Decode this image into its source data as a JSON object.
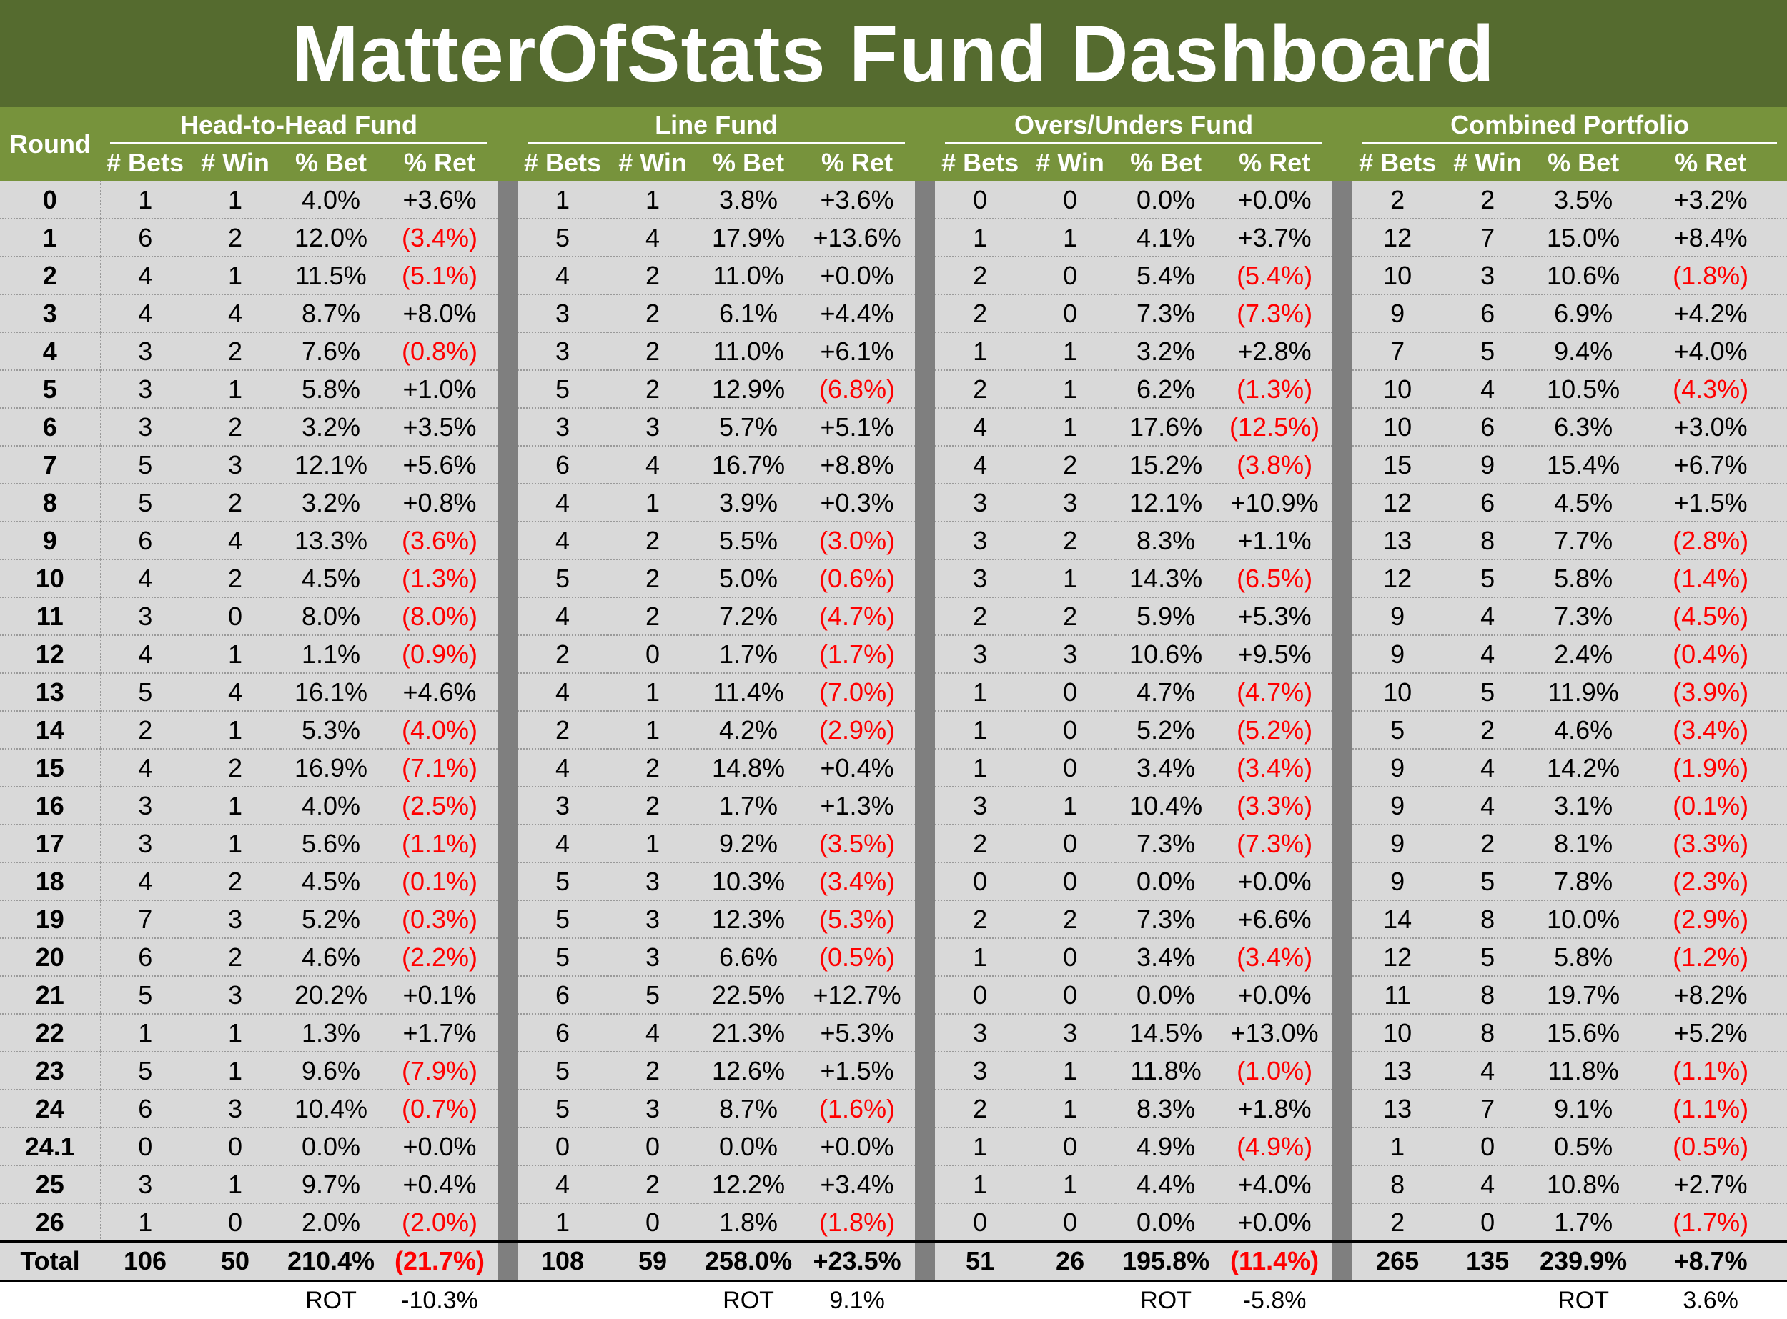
{
  "title": "MatterOfStats Fund Dashboard",
  "colors": {
    "header": "#556b2f",
    "subheader": "#77933c",
    "separator": "#7f7f7f",
    "cell": "#d9d9d9",
    "negative": "#ff0000"
  },
  "round_label": "Round",
  "funds": [
    {
      "name": "Head-to-Head Fund"
    },
    {
      "name": "Line Fund"
    },
    {
      "name": "Overs/Unders Fund"
    },
    {
      "name": "Combined Portfolio"
    }
  ],
  "columns": [
    "# Bets",
    "# Win",
    "% Bet",
    "% Ret"
  ],
  "rows": [
    {
      "round": "0",
      "cells": [
        [
          "1",
          "1",
          "4.0%",
          "+3.6%"
        ],
        [
          "1",
          "1",
          "3.8%",
          "+3.6%"
        ],
        [
          "0",
          "0",
          "0.0%",
          "+0.0%"
        ],
        [
          "2",
          "2",
          "3.5%",
          "+3.2%"
        ]
      ]
    },
    {
      "round": "1",
      "cells": [
        [
          "6",
          "2",
          "12.0%",
          "(3.4%)"
        ],
        [
          "5",
          "4",
          "17.9%",
          "+13.6%"
        ],
        [
          "1",
          "1",
          "4.1%",
          "+3.7%"
        ],
        [
          "12",
          "7",
          "15.0%",
          "+8.4%"
        ]
      ]
    },
    {
      "round": "2",
      "cells": [
        [
          "4",
          "1",
          "11.5%",
          "(5.1%)"
        ],
        [
          "4",
          "2",
          "11.0%",
          "+0.0%"
        ],
        [
          "2",
          "0",
          "5.4%",
          "(5.4%)"
        ],
        [
          "10",
          "3",
          "10.6%",
          "(1.8%)"
        ]
      ]
    },
    {
      "round": "3",
      "cells": [
        [
          "4",
          "4",
          "8.7%",
          "+8.0%"
        ],
        [
          "3",
          "2",
          "6.1%",
          "+4.4%"
        ],
        [
          "2",
          "0",
          "7.3%",
          "(7.3%)"
        ],
        [
          "9",
          "6",
          "6.9%",
          "+4.2%"
        ]
      ]
    },
    {
      "round": "4",
      "cells": [
        [
          "3",
          "2",
          "7.6%",
          "(0.8%)"
        ],
        [
          "3",
          "2",
          "11.0%",
          "+6.1%"
        ],
        [
          "1",
          "1",
          "3.2%",
          "+2.8%"
        ],
        [
          "7",
          "5",
          "9.4%",
          "+4.0%"
        ]
      ]
    },
    {
      "round": "5",
      "cells": [
        [
          "3",
          "1",
          "5.8%",
          "+1.0%"
        ],
        [
          "5",
          "2",
          "12.9%",
          "(6.8%)"
        ],
        [
          "2",
          "1",
          "6.2%",
          "(1.3%)"
        ],
        [
          "10",
          "4",
          "10.5%",
          "(4.3%)"
        ]
      ]
    },
    {
      "round": "6",
      "cells": [
        [
          "3",
          "2",
          "3.2%",
          "+3.5%"
        ],
        [
          "3",
          "3",
          "5.7%",
          "+5.1%"
        ],
        [
          "4",
          "1",
          "17.6%",
          "(12.5%)"
        ],
        [
          "10",
          "6",
          "6.3%",
          "+3.0%"
        ]
      ]
    },
    {
      "round": "7",
      "cells": [
        [
          "5",
          "3",
          "12.1%",
          "+5.6%"
        ],
        [
          "6",
          "4",
          "16.7%",
          "+8.8%"
        ],
        [
          "4",
          "2",
          "15.2%",
          "(3.8%)"
        ],
        [
          "15",
          "9",
          "15.4%",
          "+6.7%"
        ]
      ]
    },
    {
      "round": "8",
      "cells": [
        [
          "5",
          "2",
          "3.2%",
          "+0.8%"
        ],
        [
          "4",
          "1",
          "3.9%",
          "+0.3%"
        ],
        [
          "3",
          "3",
          "12.1%",
          "+10.9%"
        ],
        [
          "12",
          "6",
          "4.5%",
          "+1.5%"
        ]
      ]
    },
    {
      "round": "9",
      "cells": [
        [
          "6",
          "4",
          "13.3%",
          "(3.6%)"
        ],
        [
          "4",
          "2",
          "5.5%",
          "(3.0%)"
        ],
        [
          "3",
          "2",
          "8.3%",
          "+1.1%"
        ],
        [
          "13",
          "8",
          "7.7%",
          "(2.8%)"
        ]
      ]
    },
    {
      "round": "10",
      "cells": [
        [
          "4",
          "2",
          "4.5%",
          "(1.3%)"
        ],
        [
          "5",
          "2",
          "5.0%",
          "(0.6%)"
        ],
        [
          "3",
          "1",
          "14.3%",
          "(6.5%)"
        ],
        [
          "12",
          "5",
          "5.8%",
          "(1.4%)"
        ]
      ]
    },
    {
      "round": "11",
      "cells": [
        [
          "3",
          "0",
          "8.0%",
          "(8.0%)"
        ],
        [
          "4",
          "2",
          "7.2%",
          "(4.7%)"
        ],
        [
          "2",
          "2",
          "5.9%",
          "+5.3%"
        ],
        [
          "9",
          "4",
          "7.3%",
          "(4.5%)"
        ]
      ]
    },
    {
      "round": "12",
      "cells": [
        [
          "4",
          "1",
          "1.1%",
          "(0.9%)"
        ],
        [
          "2",
          "0",
          "1.7%",
          "(1.7%)"
        ],
        [
          "3",
          "3",
          "10.6%",
          "+9.5%"
        ],
        [
          "9",
          "4",
          "2.4%",
          "(0.4%)"
        ]
      ]
    },
    {
      "round": "13",
      "cells": [
        [
          "5",
          "4",
          "16.1%",
          "+4.6%"
        ],
        [
          "4",
          "1",
          "11.4%",
          "(7.0%)"
        ],
        [
          "1",
          "0",
          "4.7%",
          "(4.7%)"
        ],
        [
          "10",
          "5",
          "11.9%",
          "(3.9%)"
        ]
      ]
    },
    {
      "round": "14",
      "cells": [
        [
          "2",
          "1",
          "5.3%",
          "(4.0%)"
        ],
        [
          "2",
          "1",
          "4.2%",
          "(2.9%)"
        ],
        [
          "1",
          "0",
          "5.2%",
          "(5.2%)"
        ],
        [
          "5",
          "2",
          "4.6%",
          "(3.4%)"
        ]
      ]
    },
    {
      "round": "15",
      "cells": [
        [
          "4",
          "2",
          "16.9%",
          "(7.1%)"
        ],
        [
          "4",
          "2",
          "14.8%",
          "+0.4%"
        ],
        [
          "1",
          "0",
          "3.4%",
          "(3.4%)"
        ],
        [
          "9",
          "4",
          "14.2%",
          "(1.9%)"
        ]
      ]
    },
    {
      "round": "16",
      "cells": [
        [
          "3",
          "1",
          "4.0%",
          "(2.5%)"
        ],
        [
          "3",
          "2",
          "1.7%",
          "+1.3%"
        ],
        [
          "3",
          "1",
          "10.4%",
          "(3.3%)"
        ],
        [
          "9",
          "4",
          "3.1%",
          "(0.1%)"
        ]
      ]
    },
    {
      "round": "17",
      "cells": [
        [
          "3",
          "1",
          "5.6%",
          "(1.1%)"
        ],
        [
          "4",
          "1",
          "9.2%",
          "(3.5%)"
        ],
        [
          "2",
          "0",
          "7.3%",
          "(7.3%)"
        ],
        [
          "9",
          "2",
          "8.1%",
          "(3.3%)"
        ]
      ]
    },
    {
      "round": "18",
      "cells": [
        [
          "4",
          "2",
          "4.5%",
          "(0.1%)"
        ],
        [
          "5",
          "3",
          "10.3%",
          "(3.4%)"
        ],
        [
          "0",
          "0",
          "0.0%",
          "+0.0%"
        ],
        [
          "9",
          "5",
          "7.8%",
          "(2.3%)"
        ]
      ]
    },
    {
      "round": "19",
      "cells": [
        [
          "7",
          "3",
          "5.2%",
          "(0.3%)"
        ],
        [
          "5",
          "3",
          "12.3%",
          "(5.3%)"
        ],
        [
          "2",
          "2",
          "7.3%",
          "+6.6%"
        ],
        [
          "14",
          "8",
          "10.0%",
          "(2.9%)"
        ]
      ]
    },
    {
      "round": "20",
      "cells": [
        [
          "6",
          "2",
          "4.6%",
          "(2.2%)"
        ],
        [
          "5",
          "3",
          "6.6%",
          "(0.5%)"
        ],
        [
          "1",
          "0",
          "3.4%",
          "(3.4%)"
        ],
        [
          "12",
          "5",
          "5.8%",
          "(1.2%)"
        ]
      ]
    },
    {
      "round": "21",
      "cells": [
        [
          "5",
          "3",
          "20.2%",
          "+0.1%"
        ],
        [
          "6",
          "5",
          "22.5%",
          "+12.7%"
        ],
        [
          "0",
          "0",
          "0.0%",
          "+0.0%"
        ],
        [
          "11",
          "8",
          "19.7%",
          "+8.2%"
        ]
      ]
    },
    {
      "round": "22",
      "cells": [
        [
          "1",
          "1",
          "1.3%",
          "+1.7%"
        ],
        [
          "6",
          "4",
          "21.3%",
          "+5.3%"
        ],
        [
          "3",
          "3",
          "14.5%",
          "+13.0%"
        ],
        [
          "10",
          "8",
          "15.6%",
          "+5.2%"
        ]
      ]
    },
    {
      "round": "23",
      "cells": [
        [
          "5",
          "1",
          "9.6%",
          "(7.9%)"
        ],
        [
          "5",
          "2",
          "12.6%",
          "+1.5%"
        ],
        [
          "3",
          "1",
          "11.8%",
          "(1.0%)"
        ],
        [
          "13",
          "4",
          "11.8%",
          "(1.1%)"
        ]
      ]
    },
    {
      "round": "24",
      "cells": [
        [
          "6",
          "3",
          "10.4%",
          "(0.7%)"
        ],
        [
          "5",
          "3",
          "8.7%",
          "(1.6%)"
        ],
        [
          "2",
          "1",
          "8.3%",
          "+1.8%"
        ],
        [
          "13",
          "7",
          "9.1%",
          "(1.1%)"
        ]
      ]
    },
    {
      "round": "24.1",
      "cells": [
        [
          "0",
          "0",
          "0.0%",
          "+0.0%"
        ],
        [
          "0",
          "0",
          "0.0%",
          "+0.0%"
        ],
        [
          "1",
          "0",
          "4.9%",
          "(4.9%)"
        ],
        [
          "1",
          "0",
          "0.5%",
          "(0.5%)"
        ]
      ]
    },
    {
      "round": "25",
      "cells": [
        [
          "3",
          "1",
          "9.7%",
          "+0.4%"
        ],
        [
          "4",
          "2",
          "12.2%",
          "+3.4%"
        ],
        [
          "1",
          "1",
          "4.4%",
          "+4.0%"
        ],
        [
          "8",
          "4",
          "10.8%",
          "+2.7%"
        ]
      ]
    },
    {
      "round": "26",
      "cells": [
        [
          "1",
          "0",
          "2.0%",
          "(2.0%)"
        ],
        [
          "1",
          "0",
          "1.8%",
          "(1.8%)"
        ],
        [
          "0",
          "0",
          "0.0%",
          "+0.0%"
        ],
        [
          "2",
          "0",
          "1.7%",
          "(1.7%)"
        ]
      ]
    }
  ],
  "total": {
    "label": "Total",
    "cells": [
      [
        "106",
        "50",
        "210.4%",
        "(21.7%)"
      ],
      [
        "108",
        "59",
        "258.0%",
        "+23.5%"
      ],
      [
        "51",
        "26",
        "195.8%",
        "(11.4%)"
      ],
      [
        "265",
        "135",
        "239.9%",
        "+8.7%"
      ]
    ]
  },
  "rot": {
    "label": "ROT",
    "values": [
      "-10.3%",
      "9.1%",
      "-5.8%",
      "3.6%"
    ]
  }
}
